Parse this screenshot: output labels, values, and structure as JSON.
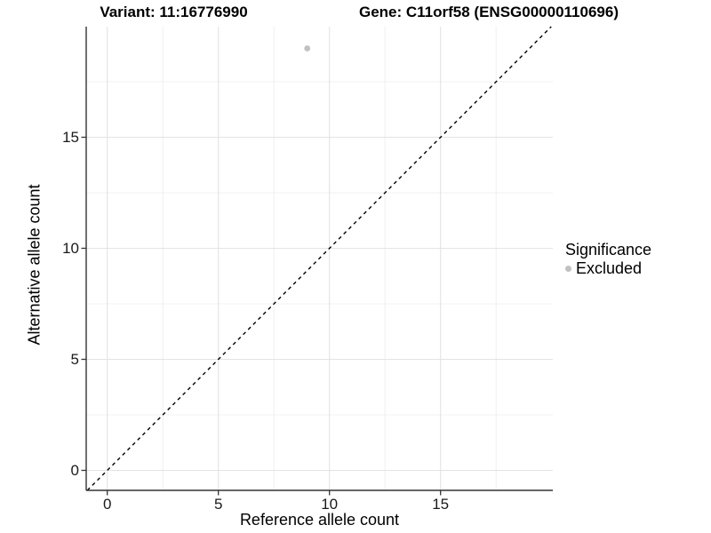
{
  "titles": {
    "variant": "Variant: 11:16776990",
    "gene": "Gene: C11orf58 (ENSG00000110696)"
  },
  "axes": {
    "x_label": "Reference allele count",
    "y_label": "Alternative allele count"
  },
  "legend": {
    "title": "Significance",
    "items": [
      {
        "label": "Excluded",
        "color": "#c1c1c1"
      }
    ]
  },
  "colors": {
    "axis_line": "#333333",
    "grid_major": "#e3e3e3",
    "grid_minor": "#f0f0f0",
    "reference_line": "#000000",
    "point": "#c1c1c1",
    "background": "#ffffff"
  },
  "chart_data": {
    "type": "scatter",
    "title_left": "Variant: 11:16776990",
    "title_right": "Gene: C11orf58 (ENSG00000110696)",
    "xlabel": "Reference allele count",
    "ylabel": "Alternative allele count",
    "series": [
      {
        "name": "Excluded",
        "color": "#c1c1c1",
        "points": [
          {
            "x": 9,
            "y": 19
          }
        ]
      }
    ],
    "reference_line": {
      "style": "dashed",
      "color": "#000000",
      "from": [
        -0.9,
        -0.9
      ],
      "to": [
        19.98,
        19.98
      ]
    },
    "x_ticks": [
      0,
      5,
      10,
      15
    ],
    "y_ticks": [
      0,
      5,
      10,
      15
    ],
    "x_minor_ticks": [
      2.5,
      7.5,
      12.5,
      17.5
    ],
    "y_minor_ticks": [
      2.5,
      7.5,
      12.5,
      17.5
    ],
    "xlim": [
      -0.95,
      20.05
    ],
    "ylim": [
      -0.9,
      20.1
    ],
    "grid": "major+minor",
    "legend_position": "right"
  }
}
